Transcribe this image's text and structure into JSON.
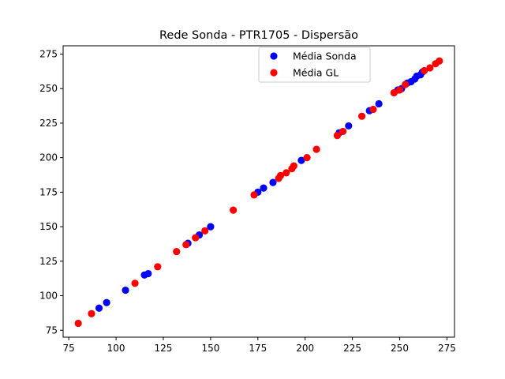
{
  "chart_data": {
    "type": "scatter",
    "title": "Rede Sonda - PTR1705 - Dispersão",
    "xlabel": "",
    "ylabel": "",
    "xlim": [
      72,
      279
    ],
    "ylim": [
      70,
      281
    ],
    "xticks": [
      75,
      100,
      125,
      150,
      175,
      200,
      225,
      250,
      275
    ],
    "yticks": [
      75,
      100,
      125,
      150,
      175,
      200,
      225,
      250,
      275
    ],
    "grid": false,
    "legend_position": "upper-center",
    "series": [
      {
        "name": "Média Sonda",
        "color": "#0000ff",
        "points": [
          [
            91,
            91
          ],
          [
            95,
            95
          ],
          [
            105,
            104
          ],
          [
            115,
            115
          ],
          [
            117,
            116
          ],
          [
            138,
            138
          ],
          [
            144,
            144
          ],
          [
            150,
            150
          ],
          [
            175,
            175
          ],
          [
            178,
            178
          ],
          [
            183,
            182
          ],
          [
            198,
            198
          ],
          [
            218,
            218
          ],
          [
            223,
            223
          ],
          [
            234,
            234
          ],
          [
            239,
            239
          ],
          [
            249,
            249
          ],
          [
            251,
            250
          ],
          [
            254,
            254
          ],
          [
            256,
            255
          ],
          [
            258,
            257
          ],
          [
            259,
            259
          ],
          [
            261,
            260
          ],
          [
            262,
            262
          ]
        ]
      },
      {
        "name": "Média GL",
        "color": "#ff0000",
        "points": [
          [
            80,
            80
          ],
          [
            87,
            87
          ],
          [
            110,
            109
          ],
          [
            122,
            121
          ],
          [
            132,
            132
          ],
          [
            137,
            137
          ],
          [
            142,
            142
          ],
          [
            147,
            147
          ],
          [
            162,
            162
          ],
          [
            173,
            173
          ],
          [
            186,
            185
          ],
          [
            187,
            187
          ],
          [
            190,
            189
          ],
          [
            193,
            192
          ],
          [
            194,
            194
          ],
          [
            201,
            200
          ],
          [
            206,
            206
          ],
          [
            217,
            216
          ],
          [
            220,
            219
          ],
          [
            230,
            230
          ],
          [
            236,
            235
          ],
          [
            247,
            247
          ],
          [
            250,
            249
          ],
          [
            253,
            253
          ],
          [
            263,
            263
          ],
          [
            266,
            265
          ],
          [
            269,
            268
          ],
          [
            271,
            270
          ]
        ]
      }
    ]
  }
}
